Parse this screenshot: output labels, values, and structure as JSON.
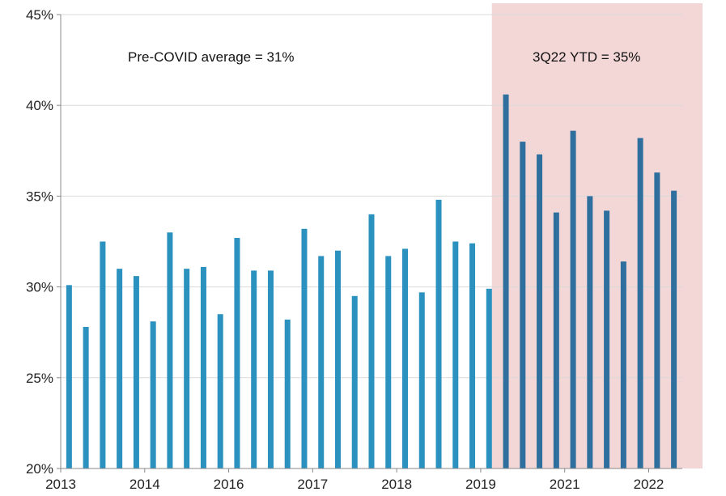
{
  "chart_data": {
    "type": "bar",
    "title": "",
    "xlabel": "",
    "ylabel": "",
    "ylim": [
      20,
      45
    ],
    "y_ticks": [
      "20%",
      "25%",
      "30%",
      "35%",
      "40%",
      "45%"
    ],
    "y_tick_values": [
      20,
      25,
      30,
      35,
      40,
      45
    ],
    "x_tick_labels": [
      "2013",
      "2014",
      "2016",
      "2017",
      "2018",
      "2019",
      "2021",
      "2022"
    ],
    "x_tick_bar_index": [
      0,
      5,
      10,
      15,
      20,
      25,
      30,
      35
    ],
    "values": [
      30.1,
      27.8,
      32.5,
      31.0,
      30.6,
      28.1,
      33.0,
      31.0,
      31.1,
      28.5,
      32.7,
      30.9,
      30.9,
      28.2,
      33.2,
      31.7,
      32.0,
      29.5,
      34.0,
      31.7,
      32.1,
      29.7,
      34.8,
      32.5,
      32.4,
      29.9,
      40.6,
      38.0,
      37.3,
      34.1,
      38.6,
      35.0,
      34.2,
      31.4,
      38.2,
      36.3,
      35.3
    ],
    "highlight_start_index": 26,
    "grid": true,
    "colors": {
      "bar_pre": "#2B91BE",
      "bar_post": "#2E6F9E",
      "highlight_band": "#F3D7D7",
      "gridline": "#D9D9D9",
      "axis": "#888888"
    },
    "annotations": {
      "pre_covid": "Pre-COVID average = 31%",
      "ytd": "3Q22 YTD = 35%"
    }
  }
}
